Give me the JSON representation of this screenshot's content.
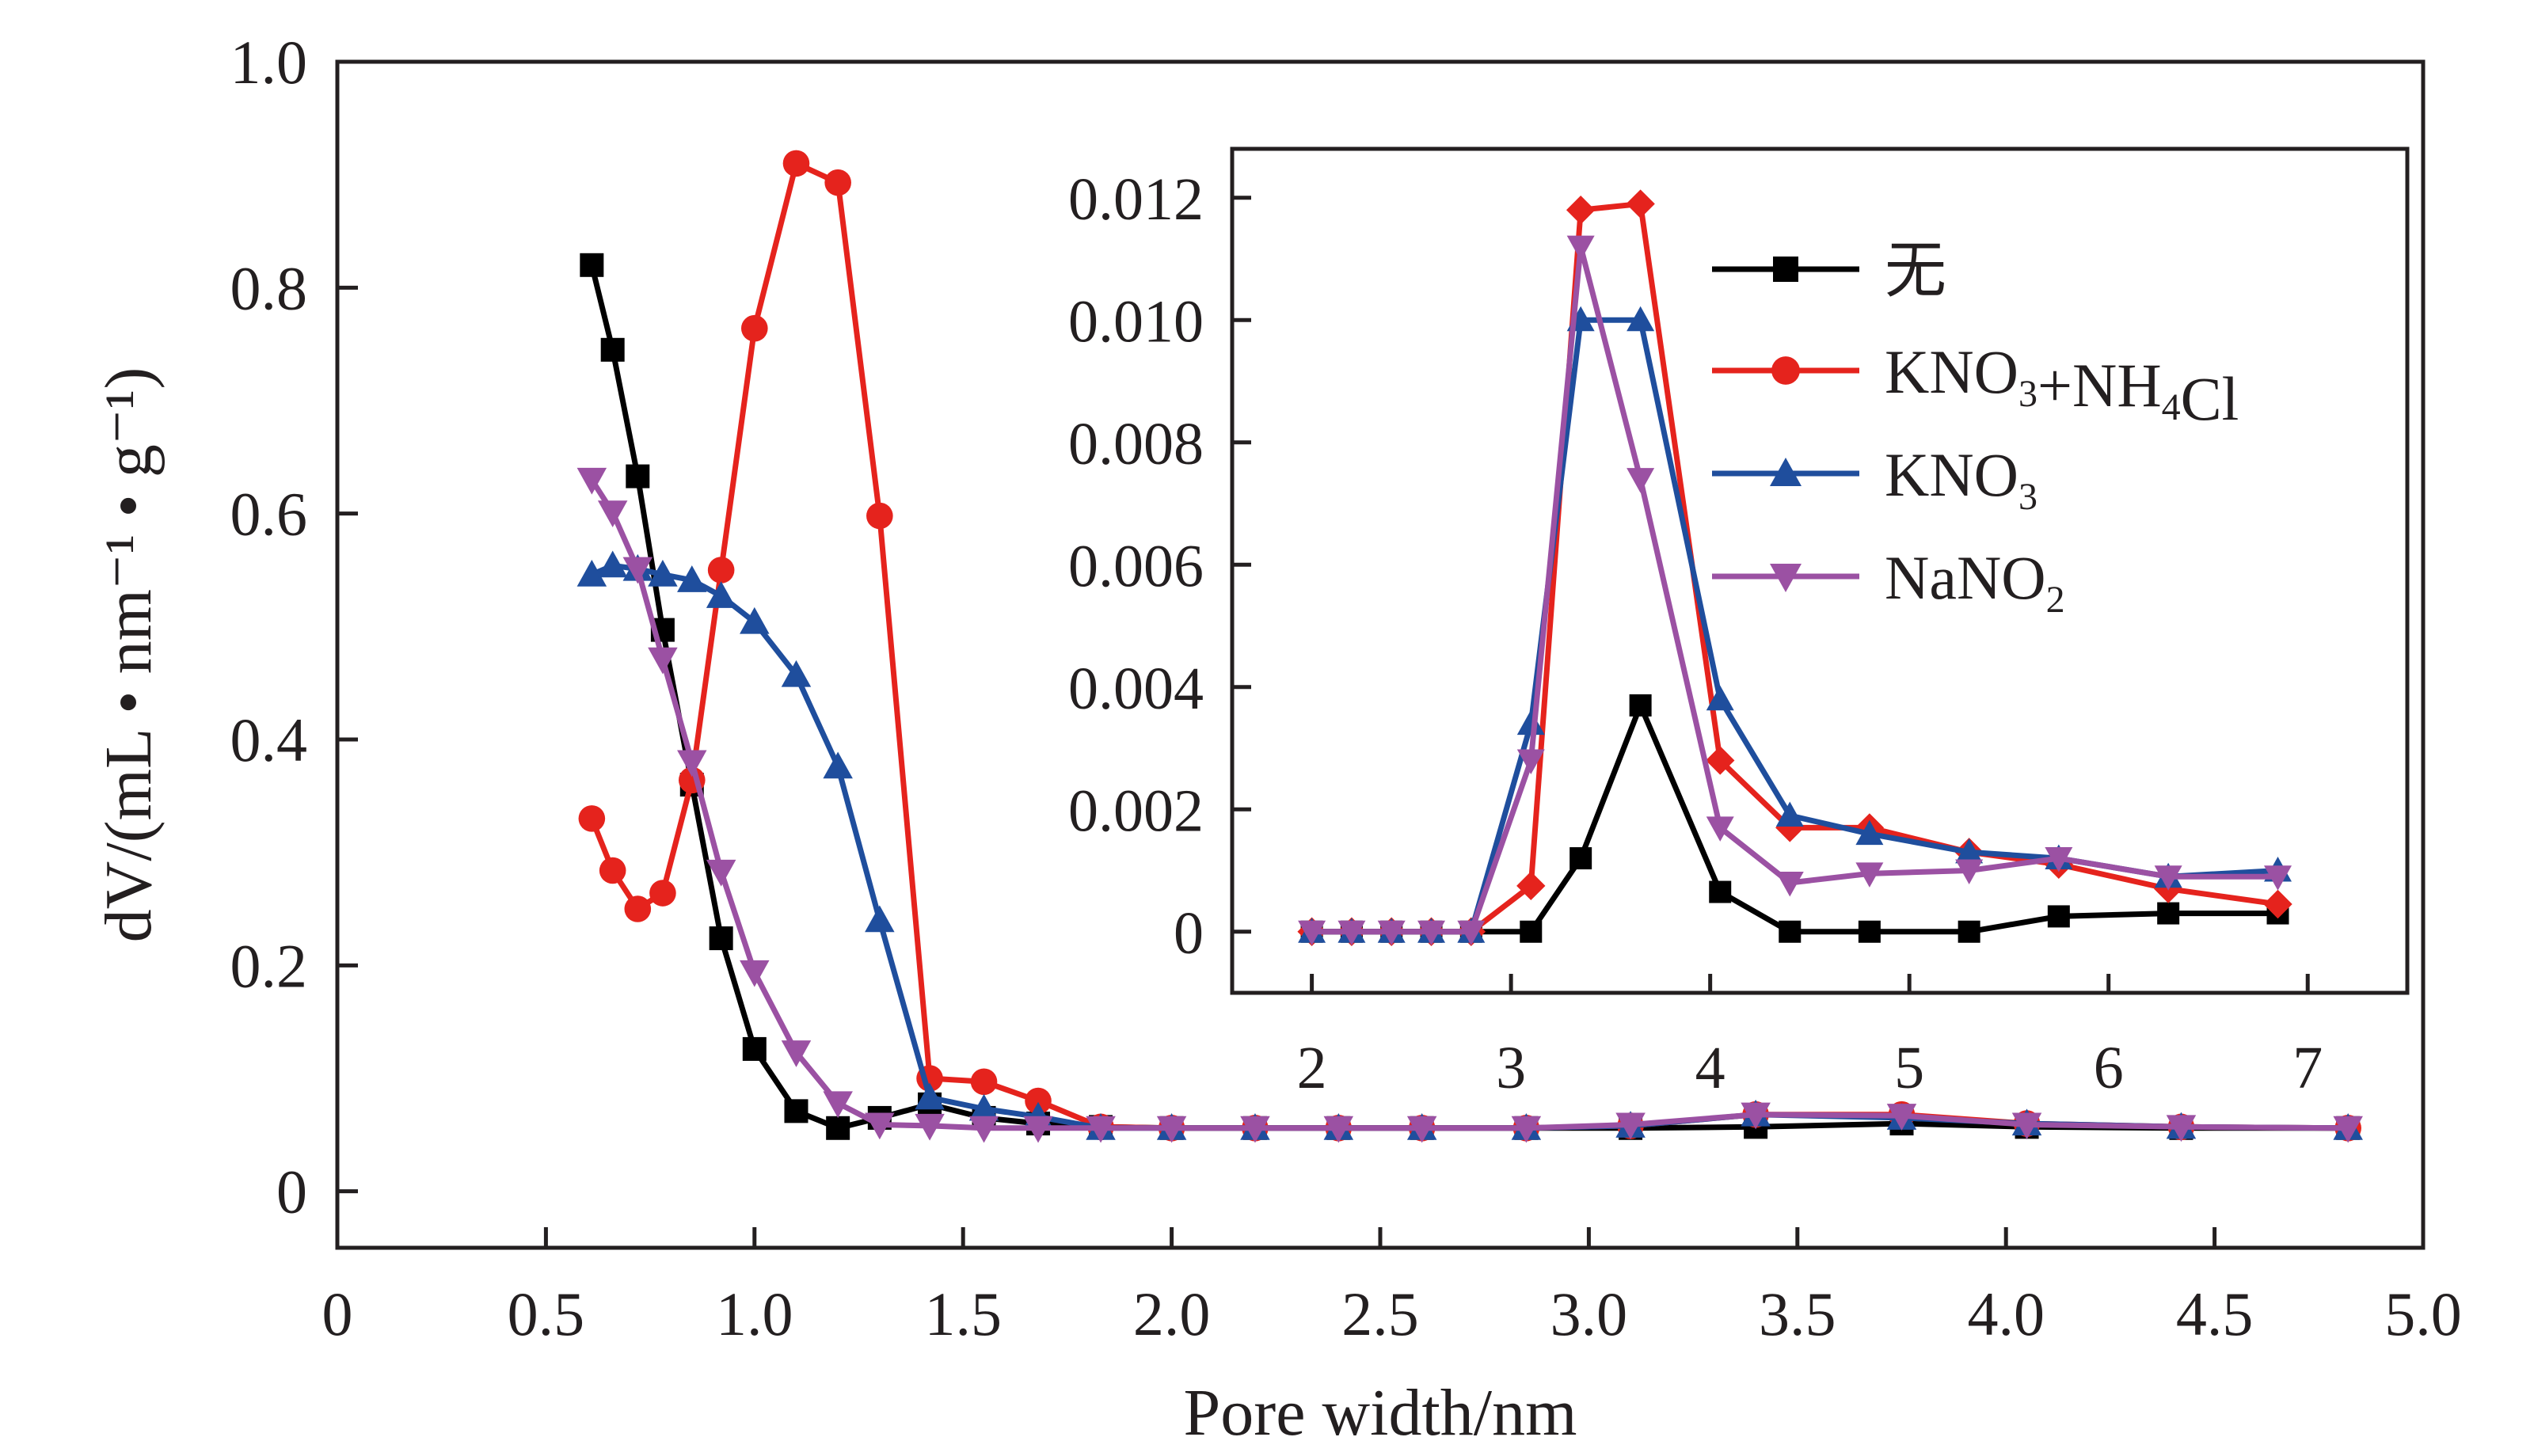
{
  "chart_data": [
    {
      "type": "line",
      "title": "",
      "xlabel": "Pore width/nm",
      "ylabel": "dV/(mL • nm⁻¹ • g⁻¹)",
      "xlim": [
        0,
        5.0
      ],
      "ylim": [
        -0.05,
        1.0
      ],
      "x_ticks": [
        "0",
        "0.5",
        "1.0",
        "1.5",
        "2.0",
        "2.5",
        "3.0",
        "3.5",
        "4.0",
        "4.5",
        "5.0"
      ],
      "y_ticks": [
        "0",
        "0.2",
        "0.4",
        "0.6",
        "0.8",
        "1.0"
      ],
      "grid": false,
      "series": [
        {
          "name": "无",
          "color": "#000000",
          "marker": "square",
          "x": [
            0.61,
            0.66,
            0.72,
            0.78,
            0.85,
            0.92,
            1.0,
            1.1,
            1.2,
            1.3,
            1.42,
            1.55,
            1.68,
            1.83,
            2.0,
            2.2,
            2.4,
            2.6,
            2.85,
            3.1,
            3.4,
            3.75,
            4.05,
            4.42,
            4.82
          ],
          "y": [
            0.82,
            0.745,
            0.633,
            0.497,
            0.36,
            0.224,
            0.126,
            0.071,
            0.056,
            0.065,
            0.077,
            0.065,
            0.06,
            0.057,
            0.056,
            0.056,
            0.056,
            0.056,
            0.056,
            0.056,
            0.057,
            0.06,
            0.057,
            0.056,
            0.056
          ]
        },
        {
          "name": "KNO3+NH4Cl",
          "color": "#e5231d",
          "marker": "circle",
          "x": [
            0.61,
            0.66,
            0.72,
            0.78,
            0.85,
            0.92,
            1.0,
            1.1,
            1.2,
            1.3,
            1.42,
            1.55,
            1.68,
            1.83,
            2.0,
            2.2,
            2.4,
            2.6,
            2.85,
            3.1,
            3.4,
            3.75,
            4.05,
            4.42,
            4.82
          ],
          "y": [
            0.33,
            0.284,
            0.25,
            0.264,
            0.364,
            0.55,
            0.764,
            0.91,
            0.893,
            0.598,
            0.1,
            0.097,
            0.08,
            0.057,
            0.056,
            0.056,
            0.056,
            0.056,
            0.056,
            0.058,
            0.068,
            0.068,
            0.06,
            0.057,
            0.056
          ]
        },
        {
          "name": "KNO3",
          "color": "#1f4e9d",
          "marker": "triangle-up",
          "x": [
            0.61,
            0.66,
            0.72,
            0.78,
            0.85,
            0.92,
            1.0,
            1.1,
            1.2,
            1.3,
            1.42,
            1.55,
            1.68,
            1.83,
            2.0,
            2.2,
            2.4,
            2.6,
            2.85,
            3.1,
            3.4,
            3.75,
            4.05,
            4.42,
            4.82
          ],
          "y": [
            0.546,
            0.554,
            0.551,
            0.546,
            0.541,
            0.527,
            0.504,
            0.457,
            0.376,
            0.24,
            0.083,
            0.073,
            0.066,
            0.056,
            0.056,
            0.056,
            0.056,
            0.056,
            0.056,
            0.058,
            0.068,
            0.065,
            0.06,
            0.057,
            0.056
          ]
        },
        {
          "name": "NaNO2",
          "color": "#9b51a3",
          "marker": "triangle-down",
          "x": [
            0.61,
            0.66,
            0.72,
            0.78,
            0.85,
            0.92,
            1.0,
            1.1,
            1.2,
            1.3,
            1.42,
            1.55,
            1.68,
            1.83,
            2.0,
            2.2,
            2.4,
            2.6,
            2.85,
            3.1,
            3.4,
            3.75,
            4.05,
            4.42,
            4.82
          ],
          "y": [
            0.63,
            0.601,
            0.551,
            0.471,
            0.38,
            0.283,
            0.194,
            0.123,
            0.078,
            0.059,
            0.058,
            0.056,
            0.056,
            0.056,
            0.056,
            0.056,
            0.056,
            0.056,
            0.056,
            0.059,
            0.068,
            0.067,
            0.059,
            0.057,
            0.056
          ]
        }
      ]
    },
    {
      "type": "line",
      "title": "",
      "xlabel": "",
      "ylabel": "",
      "xlim": [
        1.6,
        7.5
      ],
      "ylim": [
        -0.001,
        0.0128
      ],
      "x_ticks": [
        "2",
        "3",
        "4",
        "5",
        "6",
        "7"
      ],
      "y_ticks": [
        "0",
        "0.002",
        "0.004",
        "0.006",
        "0.008",
        "0.010",
        "0.012"
      ],
      "grid": false,
      "legend_position": "top-right",
      "series": [
        {
          "name": "无",
          "color": "#000000",
          "marker": "square",
          "x": [
            2.0,
            2.2,
            2.4,
            2.6,
            2.8,
            3.1,
            3.35,
            3.65,
            4.05,
            4.4,
            4.8,
            5.3,
            5.75,
            6.3,
            6.85
          ],
          "y": [
            0,
            0,
            0,
            0,
            0,
            0,
            0.0012,
            0.0037,
            0.00065,
            0,
            0,
            0,
            0.00025,
            0.0003,
            0.0003
          ]
        },
        {
          "name": "KNO3+NH4Cl",
          "color": "#e5231d",
          "marker": "diamond",
          "x": [
            2.0,
            2.2,
            2.4,
            2.6,
            2.8,
            3.1,
            3.35,
            3.65,
            4.05,
            4.4,
            4.8,
            5.3,
            5.75,
            6.3,
            6.85
          ],
          "y": [
            0,
            0,
            0,
            0,
            0,
            0.00075,
            0.0118,
            0.0119,
            0.0028,
            0.0017,
            0.0017,
            0.0013,
            0.0011,
            0.0007,
            0.00045
          ]
        },
        {
          "name": "KNO3",
          "color": "#1f4e9d",
          "marker": "triangle-up",
          "x": [
            2.0,
            2.2,
            2.4,
            2.6,
            2.8,
            3.1,
            3.35,
            3.65,
            4.05,
            4.4,
            4.8,
            5.3,
            5.75,
            6.3,
            6.85
          ],
          "y": [
            0,
            0,
            0,
            0,
            0,
            0.0034,
            0.01,
            0.01,
            0.0038,
            0.0019,
            0.0016,
            0.0013,
            0.0012,
            0.0009,
            0.001
          ]
        },
        {
          "name": "NaNO2",
          "color": "#9b51a3",
          "marker": "triangle-down",
          "x": [
            2.0,
            2.2,
            2.4,
            2.6,
            2.8,
            3.1,
            3.35,
            3.65,
            4.05,
            4.4,
            4.8,
            5.3,
            5.75,
            6.3,
            6.85
          ],
          "y": [
            0,
            0,
            0,
            0,
            0,
            0.0028,
            0.0112,
            0.0074,
            0.0017,
            0.0008,
            0.00095,
            0.001,
            0.0012,
            0.0009,
            0.0009
          ]
        }
      ]
    }
  ]
}
